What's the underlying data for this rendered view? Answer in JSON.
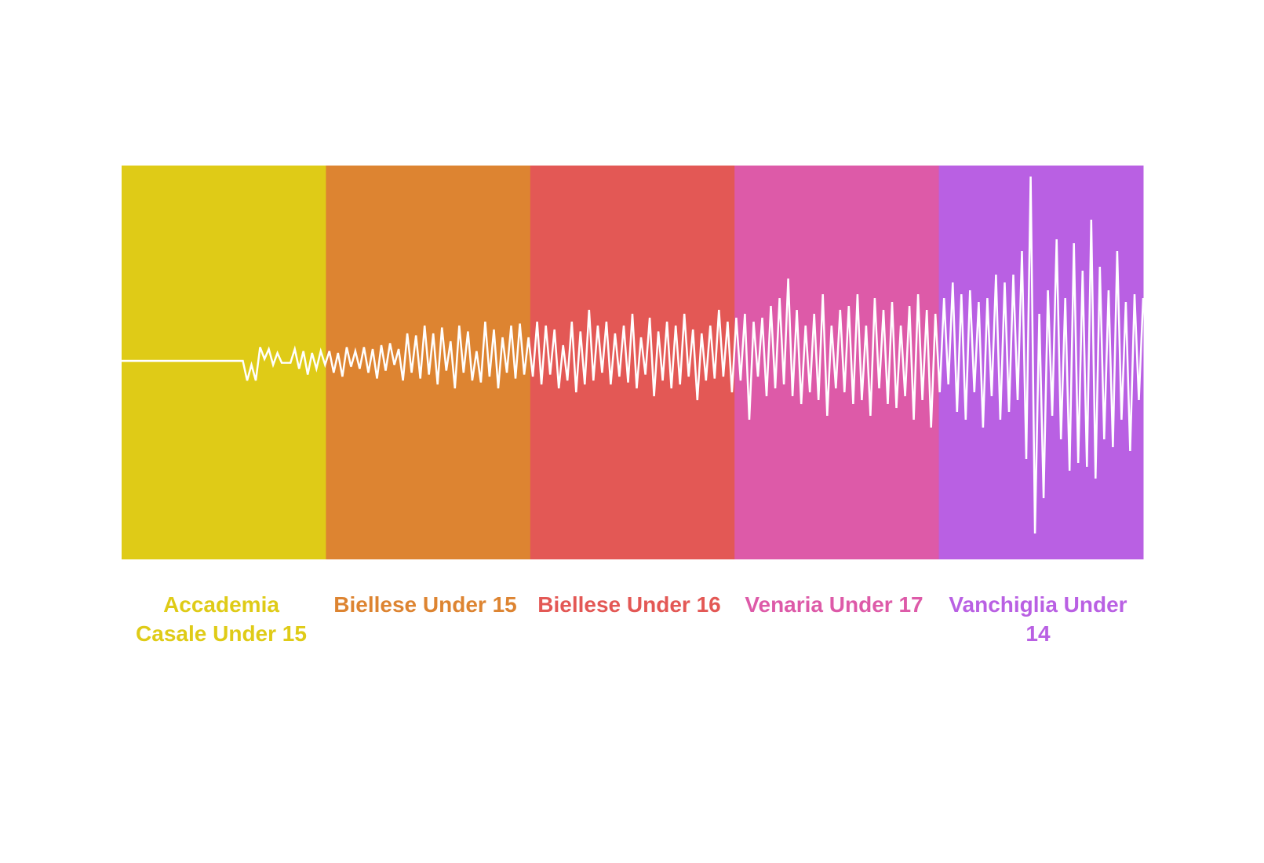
{
  "chart_data": {
    "type": "line",
    "title": "",
    "xlabel": "",
    "ylabel": "",
    "ylim": [
      -100,
      100
    ],
    "line_color": "#FFFFFF",
    "segments": [
      {
        "label": "Accademia Casale Under 15",
        "color": "#DFCB17"
      },
      {
        "label": "Biellese Under 15",
        "color": "#DD8431"
      },
      {
        "label": "Biellese Under 16",
        "color": "#E35855"
      },
      {
        "label": "Venaria Under 17",
        "color": "#DD5AA8"
      },
      {
        "label": "Vanchiglia Under 14",
        "color": "#B960E3"
      }
    ],
    "values": [
      0,
      0,
      0,
      0,
      0,
      0,
      0,
      0,
      0,
      0,
      0,
      0,
      0,
      0,
      0,
      0,
      0,
      0,
      0,
      0,
      0,
      0,
      0,
      0,
      0,
      0,
      0,
      0,
      0,
      -10,
      -2,
      -10,
      7,
      1,
      6,
      -2,
      4,
      -1,
      -1,
      -1,
      6,
      -4,
      5,
      -7,
      4,
      -4,
      5,
      -2,
      5,
      -6,
      4,
      -8,
      7,
      -3,
      5,
      -4,
      7,
      -6,
      6,
      -9,
      8,
      -5,
      9,
      -2,
      6,
      -10,
      14,
      -6,
      13,
      -9,
      18,
      -7,
      14,
      -12,
      17,
      -5,
      10,
      -14,
      18,
      -6,
      15,
      -10,
      5,
      -11,
      20,
      -8,
      16,
      -14,
      12,
      -6,
      18,
      -9,
      19,
      -7,
      12,
      -8,
      20,
      -12,
      18,
      -7,
      16,
      -14,
      8,
      -10,
      20,
      -16,
      15,
      -12,
      26,
      -10,
      18,
      -6,
      20,
      -12,
      14,
      -8,
      18,
      -11,
      24,
      -14,
      12,
      -7,
      22,
      -18,
      15,
      -10,
      20,
      -14,
      18,
      -12,
      24,
      -8,
      16,
      -20,
      14,
      -10,
      18,
      -9,
      26,
      -8,
      20,
      -16,
      22,
      -10,
      24,
      -30,
      20,
      -8,
      22,
      -18,
      28,
      -14,
      32,
      -12,
      42,
      -18,
      26,
      -22,
      18,
      -16,
      24,
      -20,
      34,
      -28,
      18,
      -14,
      26,
      -16,
      28,
      -22,
      34,
      -20,
      18,
      -28,
      32,
      -14,
      26,
      -22,
      30,
      -24,
      18,
      -18,
      28,
      -30,
      34,
      -20,
      26,
      -34,
      24,
      -16,
      32,
      -12,
      40,
      -26,
      34,
      -30,
      36,
      -16,
      30,
      -34,
      32,
      -18,
      44,
      -30,
      40,
      -26,
      44,
      -20,
      56,
      -50,
      94,
      -88,
      24,
      -70,
      36,
      -28,
      62,
      -40,
      32,
      -56,
      60,
      -52,
      46,
      -54,
      72,
      -60,
      48,
      -40,
      36,
      -44,
      56,
      -30,
      30,
      -46,
      34,
      -20,
      32
    ]
  }
}
